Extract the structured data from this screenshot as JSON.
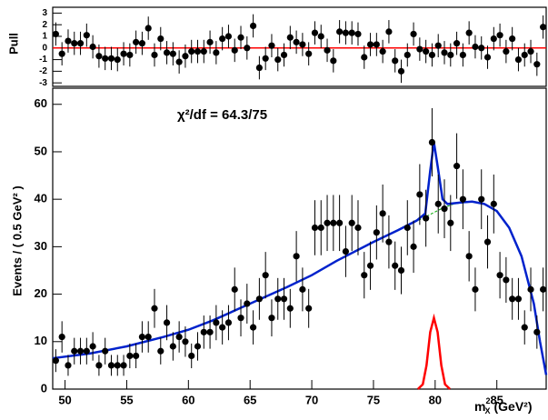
{
  "chart_data": [
    {
      "type": "scatter",
      "y_label": "Pull",
      "reference": 0,
      "reference_color": "#ff0000",
      "error": 1,
      "color": "#000000",
      "xlim": [
        49,
        89
      ],
      "ylim": [
        -3.3,
        3.5
      ],
      "yticks": [
        -3,
        -2,
        -1,
        0,
        1,
        2,
        3
      ],
      "x": [
        49.25,
        49.75,
        50.25,
        50.75,
        51.25,
        51.75,
        52.25,
        52.75,
        53.25,
        53.75,
        54.25,
        54.75,
        55.25,
        55.75,
        56.25,
        56.75,
        57.25,
        57.75,
        58.25,
        58.75,
        59.25,
        59.75,
        60.25,
        60.75,
        61.25,
        61.75,
        62.25,
        62.75,
        63.25,
        63.75,
        64.25,
        64.75,
        65.25,
        65.75,
        66.25,
        66.75,
        67.25,
        67.75,
        68.25,
        68.75,
        69.25,
        69.75,
        70.25,
        70.75,
        71.25,
        71.75,
        72.25,
        72.75,
        73.25,
        73.75,
        74.25,
        74.75,
        75.25,
        75.75,
        76.25,
        76.75,
        77.25,
        77.75,
        78.25,
        78.75,
        79.25,
        79.75,
        80.25,
        80.75,
        81.25,
        81.75,
        82.25,
        82.75,
        83.25,
        83.75,
        84.25,
        84.75,
        85.25,
        85.75,
        86.25,
        86.75,
        87.25,
        87.75,
        88.25,
        88.75
      ],
      "values": [
        1.2,
        -0.5,
        0.6,
        0.4,
        0.4,
        1.1,
        0.1,
        -0.7,
        -0.9,
        -0.9,
        -1.0,
        -0.5,
        -0.6,
        0.5,
        0.4,
        1.7,
        -0.6,
        0.8,
        -0.4,
        -0.5,
        -1.2,
        -0.7,
        -0.3,
        -0.3,
        -0.3,
        0.5,
        -0.4,
        0.8,
        1.0,
        -0.2,
        0.9,
        0.0,
        1.9,
        -1.7,
        -0.9,
        0.2,
        -1.0,
        -0.6,
        0.9,
        0.5,
        0.3,
        -0.5,
        1.3,
        1.0,
        -0.2,
        -1.1,
        1.4,
        1.3,
        1.3,
        1.2,
        -0.8,
        0.3,
        0.3,
        -0.3,
        1.4,
        -1.1,
        -2.0,
        -0.6,
        1.2,
        -0.1,
        -0.3,
        -0.6,
        0.2,
        -0.4,
        -0.6,
        0.4,
        -0.6,
        1.3,
        0.1,
        0.0,
        -0.8,
        0.8,
        1.1,
        -0.3,
        0.8,
        -1.0,
        -0.6,
        -0.3,
        -1.4,
        1.8
      ]
    },
    {
      "type": "scatter",
      "y_label": "Events / ( 0.5 GeV² )",
      "annotation": "χ²/df = 64.3/75",
      "color": "#000000",
      "x_label": {
        "symbol": "m",
        "sub": "X",
        "sup": "2",
        "unit": "(GeV²)"
      },
      "xlim": [
        49,
        89
      ],
      "ylim": [
        0,
        63.4
      ],
      "xticks": [
        50,
        55,
        60,
        65,
        70,
        75,
        80,
        85
      ],
      "yticks": [
        0,
        10,
        20,
        30,
        40,
        50,
        60
      ],
      "x": [
        49.25,
        49.75,
        50.25,
        50.75,
        51.25,
        51.75,
        52.25,
        52.75,
        53.25,
        53.75,
        54.25,
        54.75,
        55.25,
        55.75,
        56.25,
        56.75,
        57.25,
        57.75,
        58.25,
        58.75,
        59.25,
        59.75,
        60.25,
        60.75,
        61.25,
        61.75,
        62.25,
        62.75,
        63.25,
        63.75,
        64.25,
        64.75,
        65.25,
        65.75,
        66.25,
        66.75,
        67.25,
        67.75,
        68.25,
        68.75,
        69.25,
        69.75,
        70.25,
        70.75,
        71.25,
        71.75,
        72.25,
        72.75,
        73.25,
        73.75,
        74.25,
        74.75,
        75.25,
        75.75,
        76.25,
        76.75,
        77.25,
        77.75,
        78.25,
        78.75,
        79.25,
        79.75,
        80.25,
        80.75,
        81.25,
        81.75,
        82.25,
        82.75,
        83.25,
        83.75,
        84.25,
        84.75,
        85.25,
        85.75,
        86.25,
        86.75,
        87.25,
        87.75,
        88.25,
        88.75
      ],
      "values": [
        6,
        11,
        5,
        8,
        8,
        8,
        9,
        5,
        8,
        5,
        5,
        5,
        7,
        7,
        11,
        11,
        17,
        8,
        14,
        9,
        11,
        10,
        7,
        9,
        12,
        12,
        14,
        13,
        14,
        21,
        15,
        18,
        13,
        19,
        24,
        15,
        19,
        19,
        17,
        28,
        21,
        17,
        34,
        34,
        35,
        35,
        35,
        29,
        35,
        34,
        24,
        26,
        33,
        37,
        31,
        26,
        25,
        34,
        30,
        41,
        36,
        52,
        39,
        38,
        35,
        47,
        40,
        28,
        21,
        40,
        31,
        39,
        24,
        23,
        19,
        19,
        13,
        21,
        12,
        21
      ],
      "errors": [
        2.4,
        3.3,
        2.2,
        2.8,
        2.8,
        2.8,
        3,
        2.2,
        2.8,
        2.2,
        2.2,
        2.2,
        2.6,
        2.6,
        3.3,
        3.3,
        4.1,
        2.8,
        3.7,
        3,
        3.3,
        3.2,
        2.6,
        3,
        3.5,
        3.5,
        3.7,
        3.6,
        3.7,
        4.6,
        3.9,
        4.2,
        3.6,
        4.4,
        4.9,
        3.9,
        4.4,
        4.4,
        4.1,
        5.3,
        4.6,
        4.1,
        5.8,
        5.8,
        5.9,
        5.9,
        5.9,
        5.4,
        5.9,
        5.8,
        4.9,
        5.1,
        5.7,
        6.1,
        5.6,
        5.1,
        5,
        5.8,
        5.5,
        6.4,
        6,
        7.2,
        6.2,
        6.2,
        5.9,
        6.9,
        6.3,
        5.3,
        4.6,
        6.3,
        5.6,
        6.2,
        4.9,
        4.8,
        4.4,
        4.4,
        3.6,
        4.6,
        3.5,
        4.6
      ],
      "curves": [
        {
          "color": "#00aa00",
          "dashed": true,
          "x": [
            75,
            77,
            79,
            80.5,
            81.5,
            82.5,
            83.5
          ],
          "values": [
            31,
            33.5,
            36,
            38,
            39,
            39.3,
            39.5
          ]
        },
        {
          "color": "#ff0000",
          "dashed": false,
          "x": [
            78.6,
            79.0,
            79.3,
            79.6,
            79.9,
            80.2,
            80.5,
            80.8,
            81.2
          ],
          "values": [
            0,
            1,
            5,
            12,
            15,
            12,
            5,
            1,
            0
          ]
        },
        {
          "color": "#0022cc",
          "dashed": false,
          "x": [
            49,
            52,
            55,
            58,
            60,
            62,
            65,
            68,
            70,
            72,
            75,
            77,
            78.5,
            79.2,
            79.6,
            79.9,
            80.2,
            80.6,
            81,
            82,
            83,
            84,
            85,
            86,
            87,
            88,
            88.5,
            89
          ],
          "values": [
            6.5,
            7.5,
            9,
            11,
            12.5,
            14.5,
            18,
            21.5,
            24,
            27,
            31,
            33.5,
            35.5,
            37,
            46,
            52,
            47,
            40,
            39,
            39.3,
            39.5,
            39,
            37.5,
            34,
            28,
            18,
            10,
            3
          ]
        }
      ]
    }
  ]
}
